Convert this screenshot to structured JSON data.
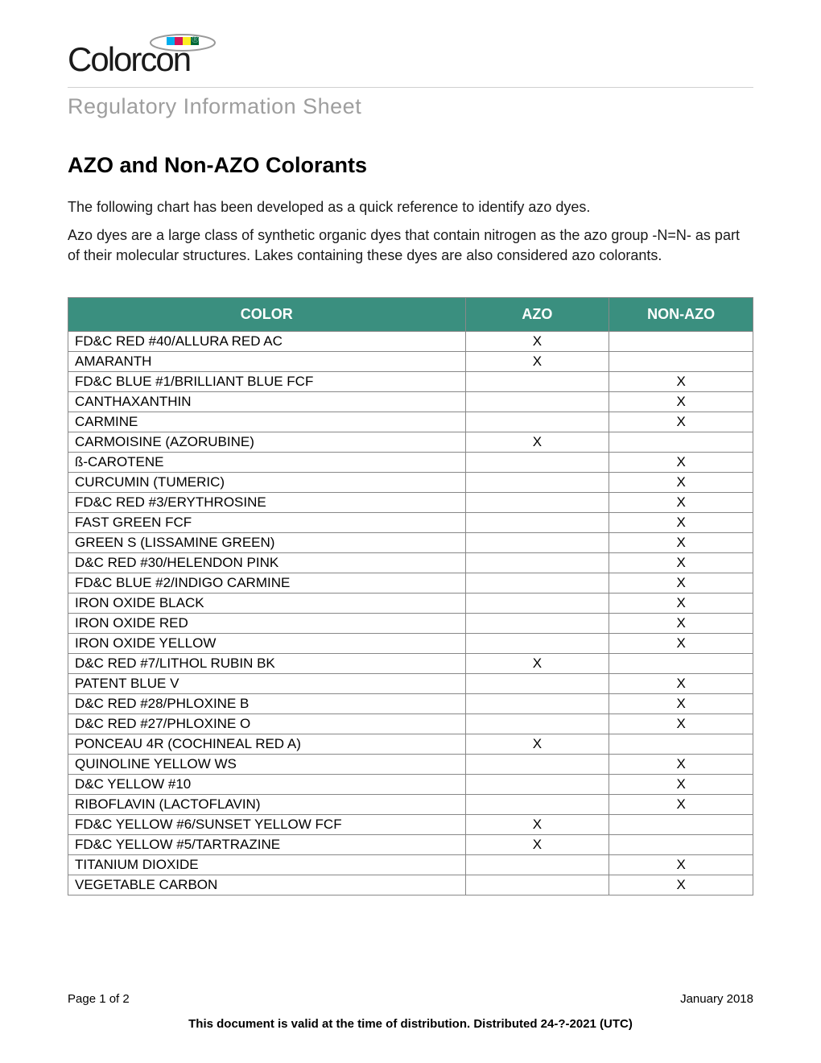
{
  "logo": {
    "text": "Colorcon",
    "registered": "®"
  },
  "subtitle": "Regulatory Information Sheet",
  "title": "AZO and Non-AZO Colorants",
  "paragraphs": [
    "The following chart has been developed as a quick reference to identify azo dyes.",
    "Azo dyes are a large class of synthetic organic dyes that contain nitrogen as the azo group -N=N- as part of their molecular structures.  Lakes containing these dyes are also considered azo colorants."
  ],
  "table": {
    "header_bg": "#3a8f7f",
    "header_fg": "#ffffff",
    "border_color": "#888888",
    "mark": "X",
    "columns": [
      "COLOR",
      "AZO",
      "NON-AZO"
    ],
    "rows": [
      {
        "color": "FD&C RED #40/ALLURA RED AC",
        "azo": "X",
        "nonazo": ""
      },
      {
        "color": "AMARANTH",
        "azo": "X",
        "nonazo": ""
      },
      {
        "color": "FD&C BLUE #1/BRILLIANT BLUE FCF",
        "azo": "",
        "nonazo": "X"
      },
      {
        "color": "CANTHAXANTHIN",
        "azo": "",
        "nonazo": "X"
      },
      {
        "color": "CARMINE",
        "azo": "",
        "nonazo": "X"
      },
      {
        "color": "CARMOISINE (AZORUBINE)",
        "azo": "X",
        "nonazo": ""
      },
      {
        "color": "ß-CAROTENE",
        "azo": "",
        "nonazo": "X"
      },
      {
        "color": "CURCUMIN (TUMERIC)",
        "azo": "",
        "nonazo": "X"
      },
      {
        "color": "FD&C RED #3/ERYTHROSINE",
        "azo": "",
        "nonazo": "X"
      },
      {
        "color": "FAST GREEN FCF",
        "azo": "",
        "nonazo": "X"
      },
      {
        "color": "GREEN S (LISSAMINE GREEN)",
        "azo": "",
        "nonazo": "X"
      },
      {
        "color": "D&C RED #30/HELENDON PINK",
        "azo": "",
        "nonazo": "X"
      },
      {
        "color": "FD&C BLUE #2/INDIGO CARMINE",
        "azo": "",
        "nonazo": "X"
      },
      {
        "color": "IRON OXIDE BLACK",
        "azo": "",
        "nonazo": "X"
      },
      {
        "color": "IRON OXIDE RED",
        "azo": "",
        "nonazo": "X"
      },
      {
        "color": "IRON OXIDE YELLOW",
        "azo": "",
        "nonazo": "X"
      },
      {
        "color": "D&C RED #7/LITHOL RUBIN BK",
        "azo": "X",
        "nonazo": ""
      },
      {
        "color": "PATENT BLUE V",
        "azo": "",
        "nonazo": "X"
      },
      {
        "color": "D&C RED #28/PHLOXINE B",
        "azo": "",
        "nonazo": "X"
      },
      {
        "color": "D&C RED #27/PHLOXINE O",
        "azo": "",
        "nonazo": "X"
      },
      {
        "color": "PONCEAU 4R (COCHINEAL RED A)",
        "azo": "X",
        "nonazo": ""
      },
      {
        "color": "QUINOLINE YELLOW WS",
        "azo": "",
        "nonazo": "X"
      },
      {
        "color": "D&C YELLOW #10",
        "azo": "",
        "nonazo": "X"
      },
      {
        "color": "RIBOFLAVIN (LACTOFLAVIN)",
        "azo": "",
        "nonazo": "X"
      },
      {
        "color": "FD&C YELLOW #6/SUNSET YELLOW FCF",
        "azo": "X",
        "nonazo": ""
      },
      {
        "color": "FD&C YELLOW #5/TARTRAZINE",
        "azo": "X",
        "nonazo": ""
      },
      {
        "color": "TITANIUM DIOXIDE",
        "azo": "",
        "nonazo": "X"
      },
      {
        "color": "VEGETABLE CARBON",
        "azo": "",
        "nonazo": "X"
      }
    ]
  },
  "footer": {
    "page": "Page 1 of 2",
    "date": "January 2018",
    "valid": "This document is valid at the time of distribution. Distributed 24-?-2021 (UTC)"
  }
}
